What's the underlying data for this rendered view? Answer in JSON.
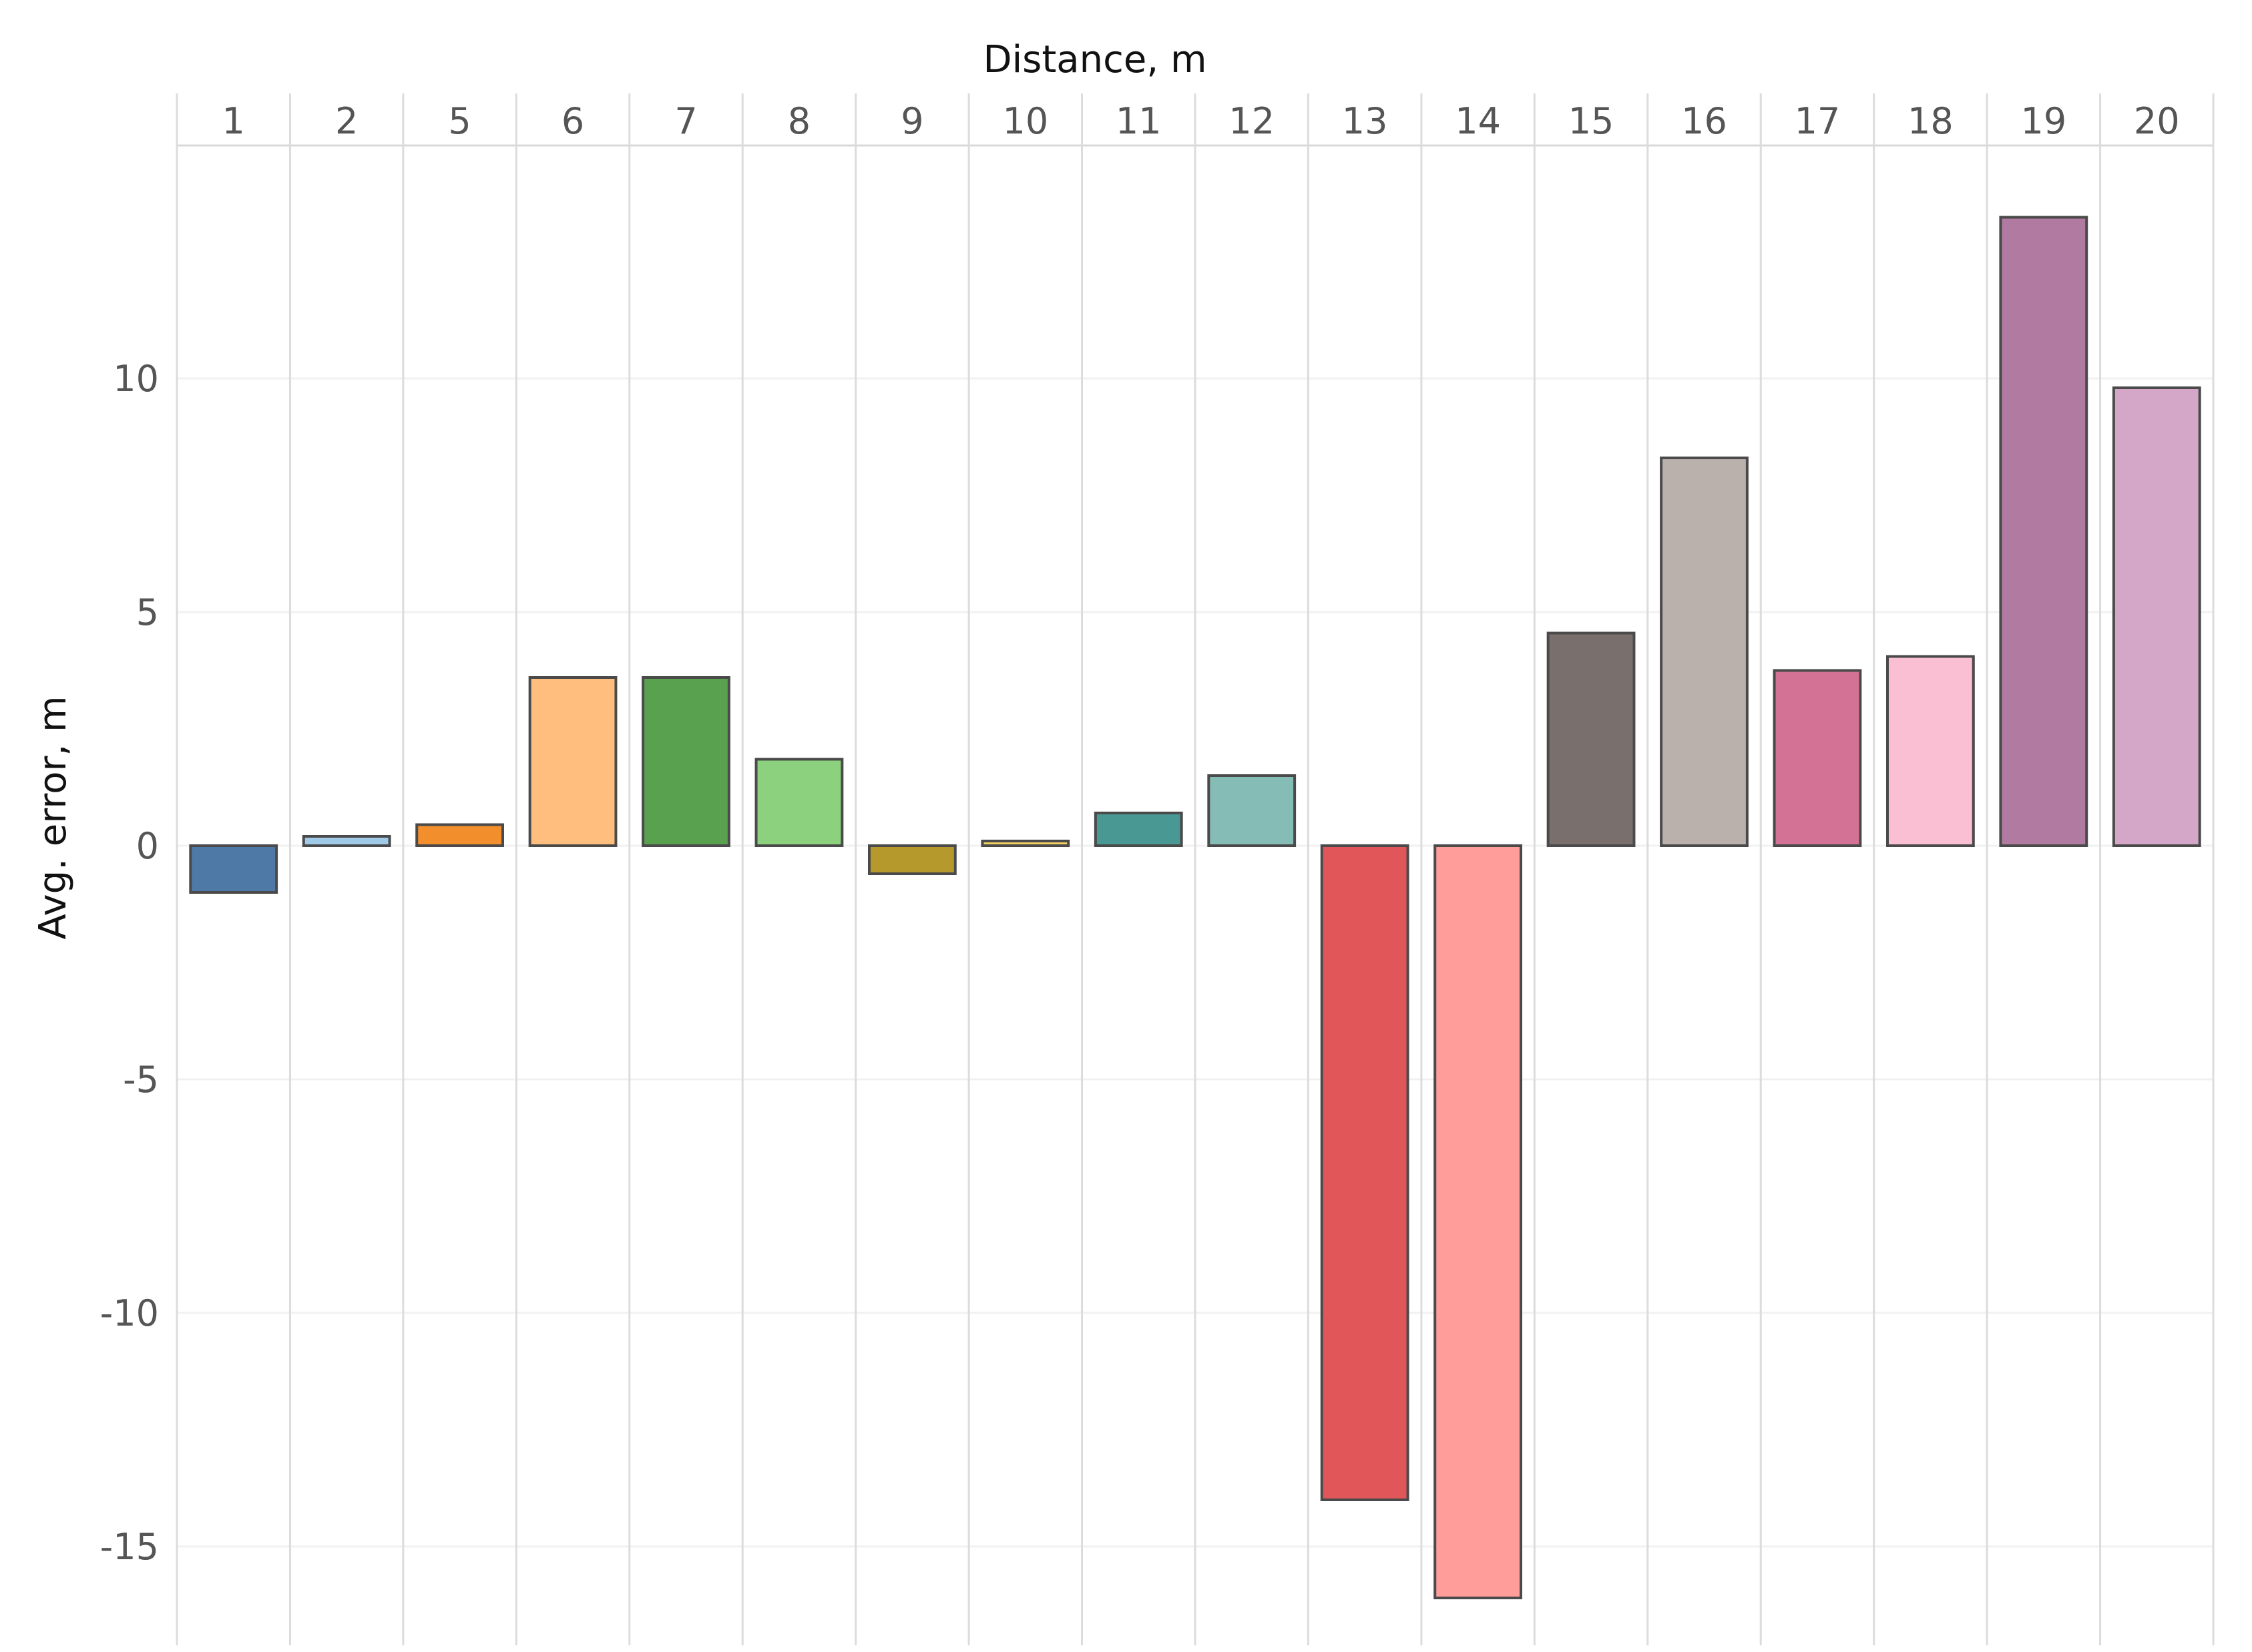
{
  "chart_data": {
    "type": "bar",
    "xlabel": "Distance, m",
    "ylabel": "Avg. error, m",
    "x_axis_position": "top",
    "categories": [
      "1",
      "2",
      "5",
      "6",
      "7",
      "8",
      "9",
      "10",
      "11",
      "12",
      "13",
      "14",
      "15",
      "16",
      "17",
      "18",
      "19",
      "20"
    ],
    "values": [
      -1.0,
      0.2,
      0.45,
      3.6,
      3.6,
      1.85,
      -0.6,
      0.1,
      0.7,
      1.5,
      -14.0,
      -16.1,
      4.55,
      8.3,
      3.75,
      4.05,
      13.45,
      9.8
    ],
    "colors": [
      "#4e79a7",
      "#a0cbe8",
      "#f28e2b",
      "#ffbe7d",
      "#59a14f",
      "#8cd17d",
      "#b6992d",
      "#f1ce63",
      "#499894",
      "#86bcb6",
      "#e15759",
      "#ff9d9a",
      "#79706e",
      "#bab0ac",
      "#d37295",
      "#fabfd2",
      "#b07aa1",
      "#d4a6c8"
    ],
    "yticks": [
      -15,
      -10,
      -5,
      0,
      5,
      10
    ],
    "ylim": [
      -17.1,
      14.8
    ],
    "grid": true,
    "legend": "none"
  }
}
